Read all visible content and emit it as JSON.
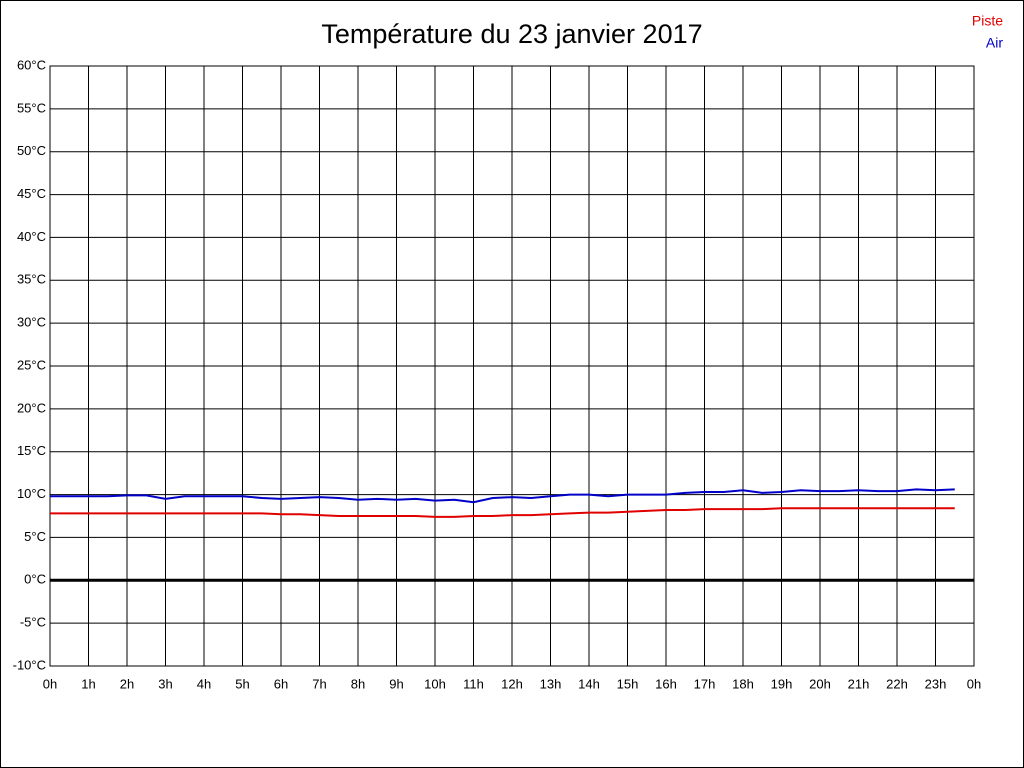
{
  "chart_data": {
    "type": "line",
    "title": "Température du 23 janvier 2017",
    "x": [
      0,
      0.5,
      1,
      1.5,
      2,
      2.5,
      3,
      3.5,
      4,
      4.5,
      5,
      5.5,
      6,
      6.5,
      7,
      7.5,
      8,
      8.5,
      9,
      9.5,
      10,
      10.5,
      11,
      11.5,
      12,
      12.5,
      13,
      13.5,
      14,
      14.5,
      15,
      15.5,
      16,
      16.5,
      17,
      17.5,
      18,
      18.5,
      19,
      19.5,
      20,
      20.5,
      21,
      21.5,
      22,
      22.5,
      23,
      23.5
    ],
    "series": [
      {
        "name": "Piste",
        "color": "#e00000",
        "values": [
          7.8,
          7.8,
          7.8,
          7.8,
          7.8,
          7.8,
          7.8,
          7.8,
          7.8,
          7.8,
          7.8,
          7.8,
          7.7,
          7.7,
          7.6,
          7.5,
          7.5,
          7.5,
          7.5,
          7.5,
          7.4,
          7.4,
          7.5,
          7.5,
          7.6,
          7.6,
          7.7,
          7.8,
          7.9,
          7.9,
          8.0,
          8.1,
          8.2,
          8.2,
          8.3,
          8.3,
          8.3,
          8.3,
          8.4,
          8.4,
          8.4,
          8.4,
          8.4,
          8.4,
          8.4,
          8.4,
          8.4,
          8.4
        ]
      },
      {
        "name": "Air",
        "color": "#0000c8",
        "values": [
          9.8,
          9.8,
          9.8,
          9.8,
          9.9,
          9.9,
          9.5,
          9.8,
          9.8,
          9.8,
          9.8,
          9.6,
          9.5,
          9.6,
          9.7,
          9.6,
          9.4,
          9.5,
          9.4,
          9.5,
          9.3,
          9.4,
          9.1,
          9.6,
          9.7,
          9.6,
          9.8,
          10.0,
          10.0,
          9.8,
          10.0,
          10.0,
          10.0,
          10.2,
          10.3,
          10.3,
          10.5,
          10.2,
          10.3,
          10.5,
          10.4,
          10.4,
          10.5,
          10.4,
          10.4,
          10.6,
          10.5,
          10.6
        ]
      }
    ],
    "xlim": [
      0,
      24
    ],
    "xticks": [
      {
        "value": 0,
        "label": "0h"
      },
      {
        "value": 1,
        "label": "1h"
      },
      {
        "value": 2,
        "label": "2h"
      },
      {
        "value": 3,
        "label": "3h"
      },
      {
        "value": 4,
        "label": "4h"
      },
      {
        "value": 5,
        "label": "5h"
      },
      {
        "value": 6,
        "label": "6h"
      },
      {
        "value": 7,
        "label": "7h"
      },
      {
        "value": 8,
        "label": "8h"
      },
      {
        "value": 9,
        "label": "9h"
      },
      {
        "value": 10,
        "label": "10h"
      },
      {
        "value": 11,
        "label": "11h"
      },
      {
        "value": 12,
        "label": "12h"
      },
      {
        "value": 13,
        "label": "13h"
      },
      {
        "value": 14,
        "label": "14h"
      },
      {
        "value": 15,
        "label": "15h"
      },
      {
        "value": 16,
        "label": "16h"
      },
      {
        "value": 17,
        "label": "17h"
      },
      {
        "value": 18,
        "label": "18h"
      },
      {
        "value": 19,
        "label": "19h"
      },
      {
        "value": 20,
        "label": "20h"
      },
      {
        "value": 21,
        "label": "21h"
      },
      {
        "value": 22,
        "label": "22h"
      },
      {
        "value": 23,
        "label": "23h"
      },
      {
        "value": 24,
        "label": "0h"
      }
    ],
    "ylim": [
      -10,
      60
    ],
    "yticks": [
      {
        "value": -10,
        "label": "-10°C"
      },
      {
        "value": -5,
        "label": "-5°C"
      },
      {
        "value": 0,
        "label": "0°C"
      },
      {
        "value": 5,
        "label": "5°C"
      },
      {
        "value": 10,
        "label": "10°C"
      },
      {
        "value": 15,
        "label": "15°C"
      },
      {
        "value": 20,
        "label": "20°C"
      },
      {
        "value": 25,
        "label": "25°C"
      },
      {
        "value": 30,
        "label": "30°C"
      },
      {
        "value": 35,
        "label": "35°C"
      },
      {
        "value": 40,
        "label": "40°C"
      },
      {
        "value": 45,
        "label": "45°C"
      },
      {
        "value": 50,
        "label": "50°C"
      },
      {
        "value": 55,
        "label": "55°C"
      },
      {
        "value": 60,
        "label": "60°C"
      }
    ],
    "grid": true,
    "zero_line": true,
    "legend": "top-right"
  }
}
